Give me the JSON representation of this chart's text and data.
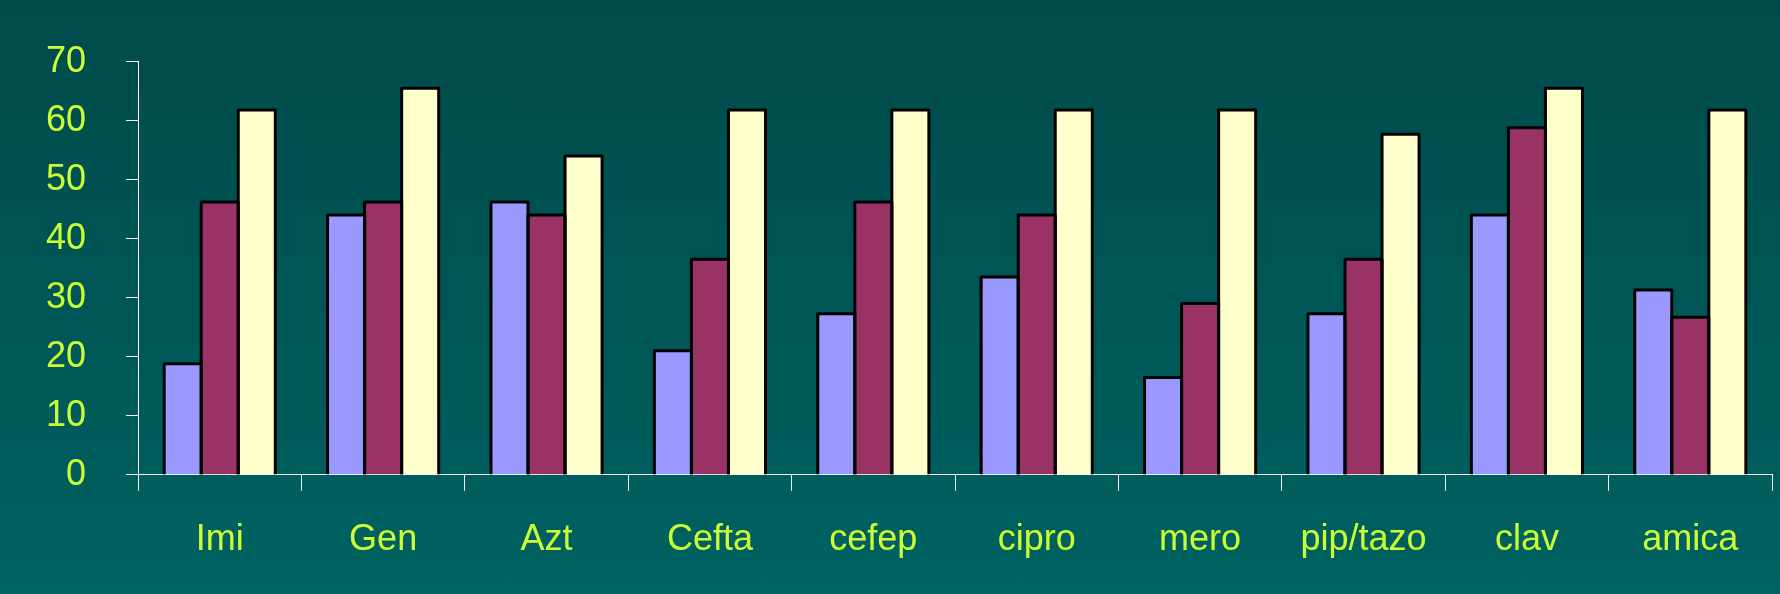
{
  "chart_data": {
    "type": "bar",
    "categories": [
      "Imi",
      "Gen",
      "Azt",
      "Cefta",
      "cefep",
      "cipro",
      "mero",
      "pip/tazo",
      "clav",
      "amica"
    ],
    "series": [
      {
        "color": "#9999ff",
        "values": [
          18.8,
          44,
          46.2,
          21,
          27.3,
          33.5,
          16.5,
          27.3,
          44,
          31.3
        ]
      },
      {
        "color": "#993366",
        "values": [
          46.2,
          46.2,
          44,
          36.5,
          46.2,
          44,
          29,
          36.5,
          58.8,
          26.7
        ]
      },
      {
        "color": "#ffffcc",
        "values": [
          61.8,
          65.5,
          54,
          61.8,
          61.8,
          61.8,
          61.8,
          57.7,
          65.5,
          61.8
        ]
      }
    ],
    "ylim": [
      0,
      70
    ],
    "yticks": [
      0,
      10,
      20,
      30,
      40,
      50,
      60,
      70
    ],
    "grid": false,
    "legend": false
  }
}
